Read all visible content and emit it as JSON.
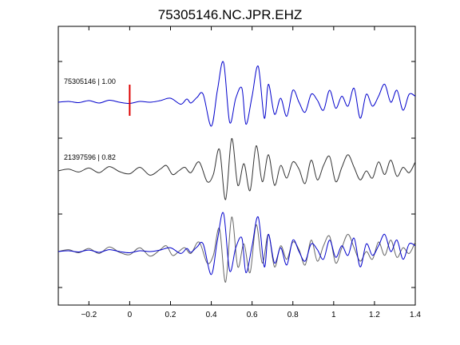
{
  "chart_data": {
    "type": "line",
    "title": "75305146.NC.JPR.EHZ",
    "xlabel": "",
    "ylabel": "",
    "xlim": [
      -0.35,
      1.4
    ],
    "x_ticks": [
      -0.2,
      0,
      0.2,
      0.4,
      0.6,
      0.8,
      1,
      1.2,
      1.4
    ],
    "x_tick_labels": [
      "−0.2",
      "0",
      "0.2",
      "0.4",
      "0.6",
      "0.8",
      "1",
      "1.2",
      "1.4"
    ],
    "y_tick_count": 4,
    "grid": false,
    "pick_marker": {
      "x": 0,
      "color": "#dd0000"
    },
    "traces": [
      {
        "label": "75305146 | 1.00",
        "color": "#0000cc",
        "x": [
          -0.35,
          -0.3,
          -0.25,
          -0.2,
          -0.15,
          -0.1,
          -0.05,
          0.0,
          0.05,
          0.1,
          0.15,
          0.2,
          0.25,
          0.28,
          0.3,
          0.33,
          0.36,
          0.4,
          0.43,
          0.46,
          0.49,
          0.52,
          0.55,
          0.57,
          0.6,
          0.63,
          0.66,
          0.68,
          0.71,
          0.74,
          0.77,
          0.8,
          0.83,
          0.86,
          0.89,
          0.92,
          0.95,
          0.98,
          1.01,
          1.04,
          1.07,
          1.1,
          1.13,
          1.16,
          1.19,
          1.22,
          1.25,
          1.28,
          1.31,
          1.34,
          1.37,
          1.4
        ],
        "y": [
          0.0,
          0.02,
          -0.01,
          0.04,
          -0.02,
          0.05,
          0.0,
          -0.03,
          0.02,
          0.0,
          0.04,
          0.1,
          -0.05,
          0.08,
          -0.02,
          0.12,
          0.2,
          -0.6,
          0.3,
          1.0,
          -0.5,
          0.1,
          0.35,
          -0.55,
          0.15,
          0.9,
          -0.4,
          0.45,
          -0.3,
          0.1,
          -0.35,
          0.3,
          0.0,
          -0.25,
          0.2,
          0.05,
          -0.2,
          0.3,
          -0.15,
          0.15,
          -0.1,
          0.35,
          -0.4,
          0.2,
          -0.1,
          0.15,
          0.45,
          0.0,
          0.3,
          -0.2,
          0.2,
          0.15
        ]
      },
      {
        "label": "21397596 | 0.82",
        "color": "#333333",
        "x": [
          -0.35,
          -0.3,
          -0.25,
          -0.2,
          -0.15,
          -0.1,
          -0.05,
          0.0,
          0.05,
          0.1,
          0.15,
          0.18,
          0.21,
          0.24,
          0.27,
          0.3,
          0.34,
          0.38,
          0.41,
          0.44,
          0.47,
          0.5,
          0.53,
          0.56,
          0.59,
          0.62,
          0.65,
          0.68,
          0.71,
          0.74,
          0.77,
          0.8,
          0.83,
          0.86,
          0.89,
          0.92,
          0.95,
          0.98,
          1.01,
          1.04,
          1.07,
          1.1,
          1.13,
          1.16,
          1.19,
          1.22,
          1.25,
          1.28,
          1.31,
          1.34,
          1.37,
          1.4
        ],
        "y": [
          0.0,
          0.05,
          -0.03,
          0.08,
          -0.05,
          0.12,
          -0.02,
          -0.08,
          0.1,
          -0.12,
          0.05,
          0.15,
          -0.1,
          0.0,
          0.1,
          -0.05,
          0.25,
          -0.3,
          -0.1,
          0.6,
          -0.8,
          0.9,
          -0.4,
          0.2,
          -0.55,
          0.7,
          -0.3,
          0.45,
          -0.4,
          0.15,
          -0.2,
          0.25,
          0.05,
          -0.35,
          0.3,
          -0.25,
          0.15,
          0.4,
          -0.3,
          0.1,
          0.45,
          0.1,
          -0.25,
          0.0,
          -0.2,
          0.25,
          -0.1,
          0.3,
          -0.15,
          0.1,
          -0.05,
          0.25
        ]
      },
      {
        "label": "",
        "color": "#0000cc",
        "x": [
          -0.35,
          -0.3,
          -0.25,
          -0.2,
          -0.15,
          -0.1,
          -0.05,
          0.0,
          0.05,
          0.1,
          0.15,
          0.2,
          0.25,
          0.28,
          0.3,
          0.33,
          0.36,
          0.4,
          0.43,
          0.46,
          0.49,
          0.52,
          0.55,
          0.57,
          0.6,
          0.63,
          0.66,
          0.68,
          0.71,
          0.74,
          0.77,
          0.8,
          0.83,
          0.86,
          0.89,
          0.92,
          0.95,
          0.98,
          1.01,
          1.04,
          1.07,
          1.1,
          1.13,
          1.16,
          1.19,
          1.22,
          1.25,
          1.28,
          1.31,
          1.34,
          1.37,
          1.4
        ],
        "y": [
          0.0,
          0.02,
          -0.01,
          0.04,
          -0.02,
          0.05,
          0.0,
          -0.03,
          0.02,
          0.0,
          0.04,
          0.1,
          -0.05,
          0.08,
          -0.02,
          0.12,
          0.2,
          -0.6,
          0.3,
          1.0,
          -0.5,
          0.1,
          0.35,
          -0.55,
          0.15,
          0.9,
          -0.4,
          0.45,
          -0.3,
          0.1,
          -0.35,
          0.3,
          0.0,
          -0.25,
          0.2,
          0.05,
          -0.2,
          0.3,
          -0.15,
          0.15,
          -0.1,
          0.35,
          -0.4,
          0.2,
          -0.1,
          0.15,
          0.45,
          0.0,
          0.3,
          -0.2,
          0.2,
          0.15
        ]
      },
      {
        "label": "",
        "color": "#666666",
        "x": [
          -0.35,
          -0.3,
          -0.25,
          -0.2,
          -0.15,
          -0.1,
          -0.05,
          0.0,
          0.05,
          0.1,
          0.15,
          0.18,
          0.21,
          0.24,
          0.27,
          0.3,
          0.34,
          0.38,
          0.41,
          0.44,
          0.47,
          0.5,
          0.53,
          0.56,
          0.59,
          0.62,
          0.65,
          0.68,
          0.71,
          0.74,
          0.77,
          0.8,
          0.83,
          0.86,
          0.89,
          0.92,
          0.95,
          0.98,
          1.01,
          1.04,
          1.07,
          1.1,
          1.13,
          1.16,
          1.19,
          1.22,
          1.25,
          1.28,
          1.31,
          1.34,
          1.37,
          1.4
        ],
        "y": [
          0.0,
          0.05,
          -0.03,
          0.08,
          -0.05,
          0.12,
          -0.02,
          -0.08,
          0.1,
          -0.12,
          0.05,
          0.15,
          -0.1,
          0.0,
          0.1,
          -0.05,
          0.25,
          -0.3,
          -0.1,
          0.6,
          -0.8,
          0.9,
          -0.4,
          0.2,
          -0.55,
          0.7,
          -0.3,
          0.45,
          -0.4,
          0.15,
          -0.2,
          0.25,
          0.05,
          -0.35,
          0.3,
          -0.25,
          0.15,
          0.4,
          -0.3,
          0.1,
          0.45,
          0.1,
          -0.25,
          0.0,
          -0.2,
          0.25,
          -0.1,
          0.3,
          -0.15,
          0.1,
          -0.05,
          0.25
        ]
      }
    ]
  }
}
